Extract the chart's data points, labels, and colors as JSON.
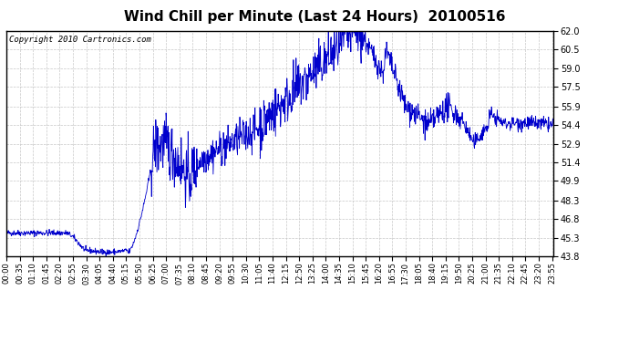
{
  "title": "Wind Chill per Minute (Last 24 Hours)  20100516",
  "copyright_text": "Copyright 2010 Cartronics.com",
  "line_color": "#0000cc",
  "background_color": "#ffffff",
  "plot_bg_color": "#ffffff",
  "grid_color": "#c8c8c8",
  "ylim": [
    43.8,
    62.0
  ],
  "yticks": [
    43.8,
    45.3,
    46.8,
    48.3,
    49.9,
    51.4,
    52.9,
    54.4,
    55.9,
    57.5,
    59.0,
    60.5,
    62.0
  ],
  "title_fontsize": 11,
  "tick_fontsize": 7,
  "copyright_fontsize": 6.5,
  "num_minutes": 1440,
  "x_tick_interval": 35,
  "x_tick_labels": [
    "00:00",
    "00:35",
    "01:10",
    "01:45",
    "02:20",
    "02:55",
    "03:30",
    "04:05",
    "04:40",
    "05:15",
    "05:50",
    "06:25",
    "07:00",
    "07:35",
    "08:10",
    "08:45",
    "09:20",
    "09:55",
    "10:30",
    "11:05",
    "11:40",
    "12:15",
    "12:50",
    "13:25",
    "14:00",
    "14:35",
    "15:10",
    "15:45",
    "16:20",
    "16:55",
    "17:30",
    "18:05",
    "18:40",
    "19:15",
    "19:50",
    "20:25",
    "21:00",
    "21:35",
    "22:10",
    "22:45",
    "23:20",
    "23:55"
  ]
}
